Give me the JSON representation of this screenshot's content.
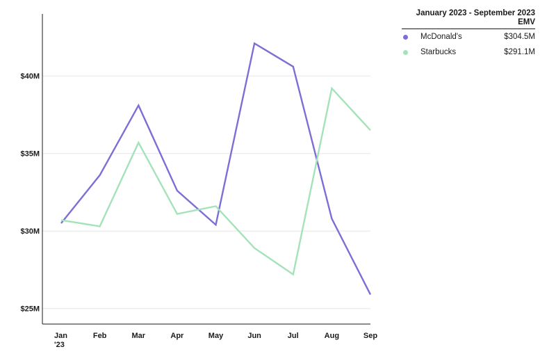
{
  "chart_data": {
    "type": "line",
    "title": "",
    "xlabel": "",
    "ylabel": "",
    "x": [
      "Jan '23",
      "Feb",
      "Mar",
      "Apr",
      "May",
      "Jun",
      "Jul",
      "Aug",
      "Sep"
    ],
    "x_tick_labels": [
      [
        "Jan",
        "'23"
      ],
      [
        "Feb"
      ],
      [
        "Mar"
      ],
      [
        "Apr"
      ],
      [
        "May"
      ],
      [
        "Jun"
      ],
      [
        "Jul"
      ],
      [
        "Aug"
      ],
      [
        "Sep"
      ]
    ],
    "yticks": [
      25,
      30,
      35,
      40
    ],
    "ytick_labels": [
      "$25M",
      "$30M",
      "$35M",
      "$40M"
    ],
    "ylim": [
      24,
      44
    ],
    "grid": true,
    "legend_position": "top-right",
    "series": [
      {
        "name": "McDonald's",
        "color": "#7b6fd6",
        "total": "$304.5M",
        "values": [
          30.5,
          33.6,
          38.1,
          32.6,
          30.4,
          42.1,
          40.6,
          30.8,
          25.9
        ]
      },
      {
        "name": "Starbucks",
        "color": "#a4e3b9",
        "total": "$291.1M",
        "values": [
          30.7,
          30.3,
          35.7,
          31.1,
          31.6,
          28.9,
          27.2,
          39.2,
          36.5
        ]
      }
    ]
  },
  "legend": {
    "header_line1": "January 2023 - September 2023",
    "header_line2": "EMV"
  }
}
